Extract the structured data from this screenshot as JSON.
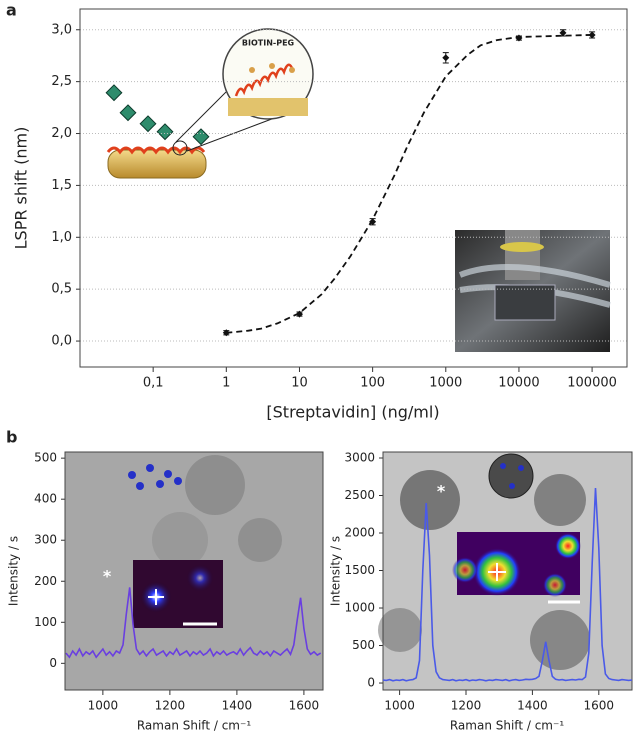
{
  "panel_labels": [
    "a",
    "b"
  ],
  "chart_data": [
    {
      "type": "scatter",
      "x_label": "[Streptavidin]  (ng/ml)",
      "y_label": "LSPR shift  (nm)",
      "xscale": "log",
      "grid": true,
      "color": "#111111",
      "x": [
        1,
        10,
        100,
        1000,
        10000,
        40000,
        100000
      ],
      "values": [
        0.08,
        0.26,
        1.15,
        2.73,
        2.92,
        2.97,
        2.95
      ],
      "errors": [
        0.02,
        0.02,
        0.03,
        0.05,
        0.02,
        0.03,
        0.03
      ],
      "fit": {
        "x": [
          1,
          2,
          3,
          5,
          10,
          20,
          30,
          50,
          100,
          200,
          300,
          500,
          1000,
          2000,
          3000,
          5000,
          10000,
          30000,
          100000
        ],
        "values": [
          0.08,
          0.1,
          0.12,
          0.17,
          0.27,
          0.45,
          0.6,
          0.82,
          1.17,
          1.6,
          1.88,
          2.2,
          2.55,
          2.76,
          2.85,
          2.9,
          2.93,
          2.94,
          2.95
        ]
      },
      "xlim": [
        0.01,
        300000
      ],
      "ylim": [
        -0.25,
        3.2
      ],
      "xticks": [
        {
          "value": 0.1,
          "label": "0,1"
        },
        1,
        10,
        100,
        1000,
        10000,
        100000
      ],
      "yticks": [
        {
          "value": 0,
          "label": "0,0"
        },
        {
          "value": 0.5,
          "label": "0,5"
        },
        {
          "value": 1,
          "label": "1,0"
        },
        {
          "value": 1.5,
          "label": "1,5"
        },
        {
          "value": 2,
          "label": "2,0"
        },
        {
          "value": 2.5,
          "label": "2,5"
        },
        {
          "value": 3,
          "label": "3,0"
        }
      ],
      "annotations": [
        "BIOTIN-PEG"
      ]
    },
    {
      "type": "line",
      "x_label": "Raman Shift / cm⁻¹",
      "y_label": "Intensity / s",
      "grid": false,
      "color": "#6a3fe0",
      "x": [
        890,
        900,
        910,
        920,
        930,
        940,
        950,
        960,
        970,
        980,
        990,
        1000,
        1010,
        1020,
        1030,
        1040,
        1050,
        1060,
        1070,
        1080,
        1090,
        1100,
        1110,
        1120,
        1130,
        1140,
        1150,
        1160,
        1170,
        1180,
        1190,
        1200,
        1210,
        1220,
        1230,
        1240,
        1250,
        1260,
        1270,
        1280,
        1290,
        1300,
        1310,
        1320,
        1330,
        1340,
        1350,
        1360,
        1370,
        1380,
        1390,
        1400,
        1410,
        1420,
        1430,
        1440,
        1450,
        1460,
        1470,
        1480,
        1490,
        1500,
        1510,
        1520,
        1530,
        1540,
        1550,
        1560,
        1570,
        1580,
        1590,
        1600,
        1610,
        1620,
        1630,
        1640,
        1650
      ],
      "values": [
        25,
        15,
        30,
        20,
        35,
        18,
        28,
        22,
        30,
        15,
        25,
        35,
        20,
        28,
        18,
        30,
        25,
        45,
        120,
        185,
        95,
        35,
        22,
        30,
        18,
        28,
        35,
        20,
        25,
        30,
        18,
        28,
        22,
        35,
        20,
        25,
        30,
        18,
        28,
        22,
        30,
        20,
        25,
        35,
        18,
        28,
        22,
        30,
        20,
        25,
        28,
        22,
        35,
        20,
        30,
        38,
        25,
        20,
        30,
        22,
        28,
        18,
        30,
        25,
        20,
        28,
        35,
        22,
        45,
        105,
        160,
        85,
        35,
        22,
        28,
        20,
        25
      ],
      "xlim": [
        887,
        1657
      ],
      "ylim": [
        -65,
        515
      ],
      "xticks": [
        1000,
        1200,
        1400,
        1600
      ],
      "yticks": [
        0,
        100,
        200,
        300,
        400,
        500
      ],
      "annotations": [
        "*"
      ]
    },
    {
      "type": "line",
      "x_label": "Raman Shift / cm⁻¹",
      "y_label": "Intensity / s",
      "grid": false,
      "color": "#4a5ae8",
      "x": [
        950,
        960,
        970,
        980,
        990,
        1000,
        1010,
        1020,
        1030,
        1040,
        1050,
        1060,
        1070,
        1080,
        1090,
        1100,
        1110,
        1120,
        1130,
        1140,
        1150,
        1160,
        1170,
        1180,
        1190,
        1200,
        1210,
        1220,
        1230,
        1240,
        1250,
        1260,
        1270,
        1280,
        1290,
        1300,
        1310,
        1320,
        1330,
        1340,
        1350,
        1360,
        1370,
        1380,
        1390,
        1400,
        1410,
        1420,
        1430,
        1440,
        1450,
        1460,
        1470,
        1480,
        1490,
        1500,
        1510,
        1520,
        1530,
        1540,
        1550,
        1560,
        1570,
        1580,
        1590,
        1600,
        1610,
        1620,
        1630,
        1640,
        1650,
        1660,
        1670,
        1680,
        1690,
        1700
      ],
      "values": [
        40,
        35,
        45,
        30,
        40,
        35,
        45,
        30,
        40,
        45,
        70,
        300,
        1500,
        2400,
        1700,
        500,
        150,
        70,
        45,
        40,
        35,
        45,
        30,
        40,
        35,
        45,
        30,
        40,
        35,
        45,
        40,
        30,
        40,
        35,
        45,
        40,
        35,
        45,
        30,
        40,
        45,
        35,
        40,
        50,
        45,
        50,
        60,
        90,
        300,
        550,
        300,
        90,
        50,
        40,
        45,
        35,
        40,
        45,
        40,
        50,
        45,
        80,
        400,
        1600,
        2600,
        1800,
        500,
        120,
        60,
        45,
        40,
        35,
        45,
        40,
        35,
        40
      ],
      "xlim": [
        950,
        1700
      ],
      "ylim": [
        -93,
        3080
      ],
      "xticks": [
        1000,
        1200,
        1400,
        1600
      ],
      "yticks": [
        0,
        500,
        1000,
        1500,
        2000,
        2500,
        3000
      ],
      "annotations": [
        "*"
      ]
    }
  ]
}
